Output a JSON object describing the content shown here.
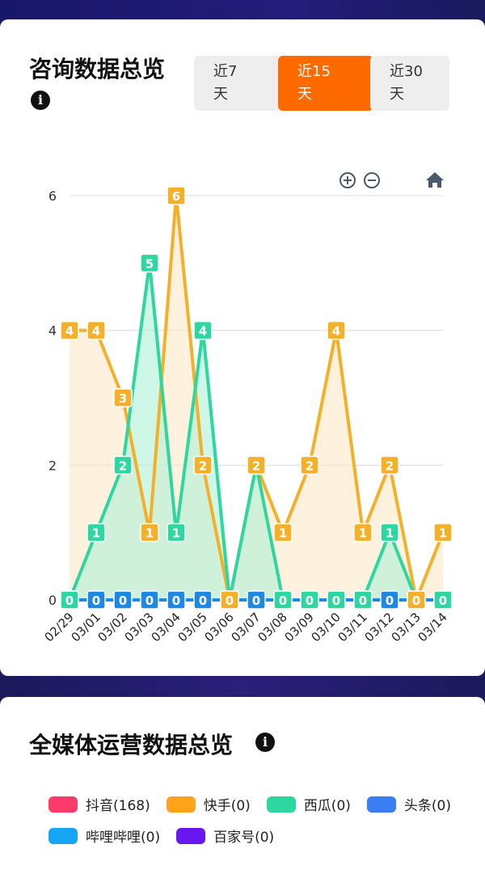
{
  "card1": {
    "title": "咨询数据总览",
    "info_icon": "info-icon",
    "range_buttons": [
      {
        "line1": "近7",
        "line2": "天",
        "active": false
      },
      {
        "line1": "近15",
        "line2": "天",
        "active": true
      },
      {
        "line1": "近30",
        "line2": "天",
        "active": false
      }
    ],
    "toolbar_icons": [
      "zoom-in-icon",
      "zoom-out-icon",
      "home-icon"
    ]
  },
  "card2": {
    "title": "全媒体运营数据总览",
    "legend": [
      {
        "label": "抖音(168)",
        "color": "#ff3b6b"
      },
      {
        "label": "快手(0)",
        "color": "#ffa31a"
      },
      {
        "label": "西瓜(0)",
        "color": "#2ed6a0"
      },
      {
        "label": "头条(0)",
        "color": "#3a7df5"
      },
      {
        "label": "哔哩哔哩(0)",
        "color": "#16a4f5"
      },
      {
        "label": "百家号(0)",
        "color": "#6a16f0"
      }
    ]
  },
  "chart_data": {
    "type": "area",
    "categories": [
      "02/29",
      "03/01",
      "03/02",
      "03/03",
      "03/04",
      "03/05",
      "03/06",
      "03/07",
      "03/08",
      "03/09",
      "03/10",
      "03/11",
      "03/12",
      "03/13",
      "03/14"
    ],
    "ylim": [
      0,
      6
    ],
    "yticks": [
      0,
      2,
      4,
      6
    ],
    "grid": true,
    "series": [
      {
        "color": "#f5b02a",
        "fill": "#fde8c2",
        "values": [
          4,
          4,
          3,
          1,
          6,
          2,
          0,
          2,
          1,
          2,
          4,
          1,
          2,
          0,
          1
        ]
      },
      {
        "color": "#2ed6a0",
        "fill": "#a8f0d6",
        "values": [
          0,
          1,
          2,
          5,
          1,
          4,
          0,
          2,
          0,
          0,
          0,
          0,
          1,
          0,
          0
        ]
      },
      {
        "color": "#1e88e5",
        "fill": "#bcdcf7",
        "values": [
          0,
          0,
          0,
          0,
          0,
          0,
          0,
          0,
          0,
          0,
          0,
          0,
          0,
          0,
          0
        ]
      }
    ]
  }
}
